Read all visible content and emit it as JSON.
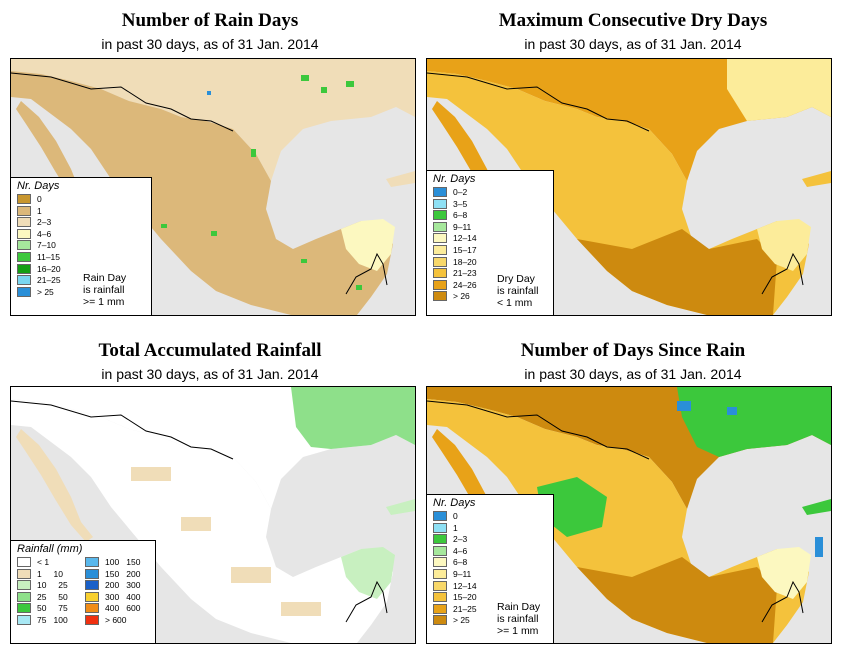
{
  "panels": [
    {
      "title": "Number of Rain Days",
      "subtitle": "in past 30 days, as of  31 Jan. 2014",
      "legend_title": "Nr. Days",
      "note": [
        "Rain Day",
        "is rainfall",
        ">= 1 mm"
      ],
      "classes": [
        {
          "label": "0",
          "color": "#c8962e"
        },
        {
          "label": "1",
          "color": "#dcb87a"
        },
        {
          "label": "2–3",
          "color": "#f0ddb8"
        },
        {
          "label": "4–6",
          "color": "#fcf8c0"
        },
        {
          "label": "7–10",
          "color": "#a6e89c"
        },
        {
          "label": "11–15",
          "color": "#3cc83c"
        },
        {
          "label": "16–20",
          "color": "#139f13"
        },
        {
          "label": "21–25",
          "color": "#7ad6f0"
        },
        {
          "label": "> 25",
          "color": "#2a8fd8"
        }
      ]
    },
    {
      "title": "Maximum Consecutive Dry Days",
      "subtitle": "in past 30 days, as of  31 Jan. 2014",
      "legend_title": "Nr. Days",
      "note": [
        "Dry Day",
        "is rainfall",
        "< 1 mm"
      ],
      "classes": [
        {
          "label": "0–2",
          "color": "#2a8fd8"
        },
        {
          "label": "3–5",
          "color": "#8ee0f4"
        },
        {
          "label": "6–8",
          "color": "#3cc83c"
        },
        {
          "label": "9–11",
          "color": "#a6e89c"
        },
        {
          "label": "12–14",
          "color": "#fcf8c0"
        },
        {
          "label": "15–17",
          "color": "#fcec9a"
        },
        {
          "label": "18–20",
          "color": "#f8d86a"
        },
        {
          "label": "21–23",
          "color": "#f4c23c"
        },
        {
          "label": "24–26",
          "color": "#e8a218"
        },
        {
          "label": "> 26",
          "color": "#cd8a0f"
        }
      ]
    },
    {
      "title": "Total Accumulated Rainfall",
      "subtitle": "in past 30 days, as of  31 Jan. 2014",
      "legend_title": "Rainfall (mm)",
      "note": [],
      "classes": [
        {
          "label": "< 1",
          "color": "#ffffff"
        },
        {
          "label": "1     10",
          "color": "#f0ddb8"
        },
        {
          "label": "10     25",
          "color": "#c8f0c0"
        },
        {
          "label": "25     50",
          "color": "#8ee08a"
        },
        {
          "label": "50     75",
          "color": "#3cc83c"
        },
        {
          "label": "75   100",
          "color": "#a8e8f4"
        },
        {
          "label": "100   150",
          "color": "#5ab8ec"
        },
        {
          "label": "150   200",
          "color": "#2a8fd8"
        },
        {
          "label": "200   300",
          "color": "#1a60c8"
        },
        {
          "label": "300   400",
          "color": "#f8d030"
        },
        {
          "label": "400   600",
          "color": "#f08c18"
        },
        {
          "label": "> 600",
          "color": "#f03010"
        }
      ]
    },
    {
      "title": "Number of Days Since Rain",
      "subtitle": "in past 30 days, as of  31 Jan. 2014",
      "legend_title": "Nr. Days",
      "note": [
        "Rain Day",
        "is rainfall",
        ">= 1 mm"
      ],
      "classes": [
        {
          "label": "0",
          "color": "#2a8fd8"
        },
        {
          "label": "1",
          "color": "#8ee0f4"
        },
        {
          "label": "2–3",
          "color": "#3cc83c"
        },
        {
          "label": "4–6",
          "color": "#a6e89c"
        },
        {
          "label": "6–8",
          "color": "#fcf8c0"
        },
        {
          "label": "9–11",
          "color": "#fcec9a"
        },
        {
          "label": "12–14",
          "color": "#f8d86a"
        },
        {
          "label": "15–20",
          "color": "#f4c23c"
        },
        {
          "label": "21–25",
          "color": "#e8a218"
        },
        {
          "label": "> 25",
          "color": "#cd8a0f"
        }
      ]
    }
  ]
}
